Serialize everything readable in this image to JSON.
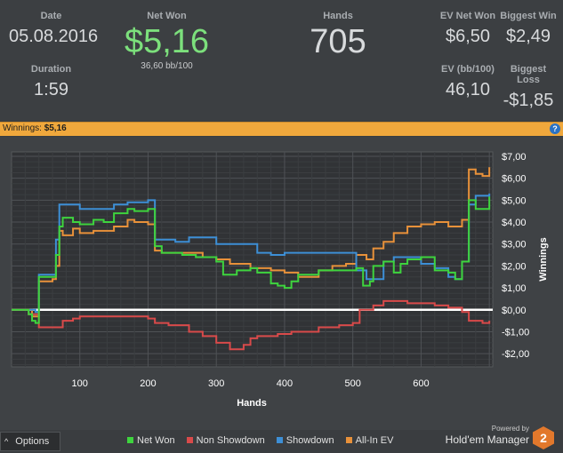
{
  "stats": {
    "date_label": "Date",
    "date_value": "05.08.2016",
    "duration_label": "Duration",
    "duration_value": "1:59",
    "netwon_label": "Net Won",
    "netwon_value": "$5,16",
    "netwon_bb": "36,60 bb/100",
    "hands_label": "Hands",
    "hands_value": "705",
    "ev_net_label": "EV Net Won",
    "ev_net_value": "$6,50",
    "biggest_win_label": "Biggest Win",
    "biggest_win_value": "$2,49",
    "ev_bb_label": "EV (bb/100)",
    "ev_bb_value": "46,10",
    "biggest_loss_label": "Biggest Loss",
    "biggest_loss_value": "-$1,85"
  },
  "winbar": {
    "label": "Winnings:",
    "value": "$5,16",
    "help_icon": "?"
  },
  "footer": {
    "options_label": "Options",
    "powered_label": "Powered by",
    "brand_label": "Hold'em Manager",
    "logo_text": "2"
  },
  "colors": {
    "net_won": "#3ed43e",
    "non_showdown": "#d94a4a",
    "showdown": "#3d8fd6",
    "allin_ev": "#e8913a",
    "accent_bar": "#f0a83c"
  },
  "chart_data": {
    "type": "line",
    "xlabel": "Hands",
    "ylabel": "Winnings",
    "xlim": [
      0,
      705
    ],
    "ylim": [
      -2.6,
      7.2
    ],
    "xticks": [
      100,
      200,
      300,
      400,
      500,
      600
    ],
    "xtick_labels": [
      "100",
      "200",
      "300",
      "400",
      "500",
      "600"
    ],
    "yticks": [
      7,
      6,
      5,
      4,
      3,
      2,
      1,
      0,
      -1,
      -2
    ],
    "ytick_labels": [
      "$7,00",
      "$6,00",
      "$5,00",
      "$4,00",
      "$3,00",
      "$2,00",
      "$1,00",
      "$0,00",
      "-$1,00",
      "-$2,00"
    ],
    "grid": true,
    "zero_line": true,
    "series": [
      {
        "name": "Net Won",
        "color_key": "net_won",
        "x": [
          0,
          25,
          30,
          35,
          40,
          60,
          65,
          70,
          75,
          90,
          100,
          120,
          135,
          150,
          170,
          180,
          200,
          210,
          220,
          250,
          270,
          300,
          310,
          330,
          350,
          360,
          380,
          390,
          400,
          410,
          420,
          450,
          470,
          490,
          505,
          515,
          525,
          530,
          545,
          560,
          570,
          580,
          600,
          620,
          640,
          650,
          660,
          670,
          680,
          700
        ],
        "y": [
          0,
          -0.2,
          -0.5,
          -0.6,
          1.5,
          1.5,
          2.5,
          3.8,
          4.2,
          4.0,
          3.9,
          4.1,
          4.0,
          4.4,
          4.6,
          4.5,
          4.6,
          2.9,
          2.6,
          2.5,
          2.4,
          2.2,
          1.6,
          1.8,
          1.9,
          1.7,
          1.2,
          1.1,
          1.0,
          1.3,
          1.6,
          1.8,
          1.8,
          1.8,
          1.9,
          1.1,
          1.3,
          2.0,
          2.2,
          1.7,
          2.1,
          2.3,
          2.4,
          1.8,
          1.7,
          1.4,
          2.2,
          5.0,
          4.6,
          5.16
        ]
      },
      {
        "name": "Non Showdown",
        "color_key": "non_showdown",
        "x": [
          0,
          25,
          40,
          60,
          75,
          90,
          100,
          150,
          200,
          210,
          230,
          260,
          280,
          300,
          320,
          340,
          350,
          360,
          390,
          410,
          450,
          480,
          500,
          510,
          530,
          545,
          560,
          580,
          600,
          620,
          640,
          660,
          670,
          690,
          700
        ],
        "y": [
          0,
          -0.2,
          -0.8,
          -0.8,
          -0.5,
          -0.4,
          -0.3,
          -0.3,
          -0.4,
          -0.6,
          -0.7,
          -1.0,
          -1.2,
          -1.5,
          -1.8,
          -1.6,
          -1.3,
          -1.2,
          -1.1,
          -1.0,
          -0.8,
          -0.7,
          -0.6,
          0.0,
          0.2,
          0.4,
          0.4,
          0.3,
          0.3,
          0.2,
          0.1,
          -0.1,
          -0.5,
          -0.6,
          -0.5
        ]
      },
      {
        "name": "Showdown",
        "color_key": "showdown",
        "x": [
          0,
          35,
          40,
          60,
          65,
          70,
          100,
          150,
          170,
          200,
          210,
          220,
          240,
          260,
          280,
          300,
          360,
          380,
          400,
          420,
          450,
          500,
          505,
          520,
          535,
          545,
          560,
          600,
          620,
          640,
          650,
          660,
          670,
          680,
          700
        ],
        "y": [
          0,
          -0.1,
          1.6,
          1.6,
          3.2,
          4.8,
          4.6,
          4.8,
          4.9,
          5.0,
          3.2,
          3.2,
          3.1,
          3.3,
          3.3,
          3.0,
          2.6,
          2.5,
          2.6,
          2.6,
          2.6,
          2.6,
          1.8,
          1.4,
          1.4,
          2.2,
          2.4,
          2.1,
          1.9,
          1.5,
          1.4,
          2.2,
          4.8,
          5.2,
          5.3
        ]
      },
      {
        "name": "All-In EV",
        "color_key": "allin_ev",
        "x": [
          0,
          30,
          40,
          60,
          65,
          70,
          75,
          90,
          100,
          120,
          150,
          170,
          180,
          200,
          210,
          220,
          250,
          280,
          300,
          320,
          350,
          380,
          400,
          420,
          450,
          470,
          490,
          505,
          520,
          530,
          545,
          560,
          580,
          600,
          620,
          640,
          660,
          670,
          680,
          690,
          700
        ],
        "y": [
          0,
          -0.3,
          1.3,
          1.4,
          2.0,
          3.6,
          3.4,
          3.7,
          3.5,
          3.6,
          3.8,
          4.1,
          4.0,
          3.9,
          2.7,
          2.6,
          2.6,
          2.4,
          2.3,
          2.1,
          1.9,
          1.8,
          1.7,
          1.5,
          1.8,
          2.0,
          2.1,
          2.5,
          2.3,
          2.8,
          3.1,
          3.5,
          3.8,
          3.9,
          4.0,
          3.8,
          4.1,
          6.4,
          6.2,
          6.1,
          6.5
        ]
      }
    ]
  }
}
